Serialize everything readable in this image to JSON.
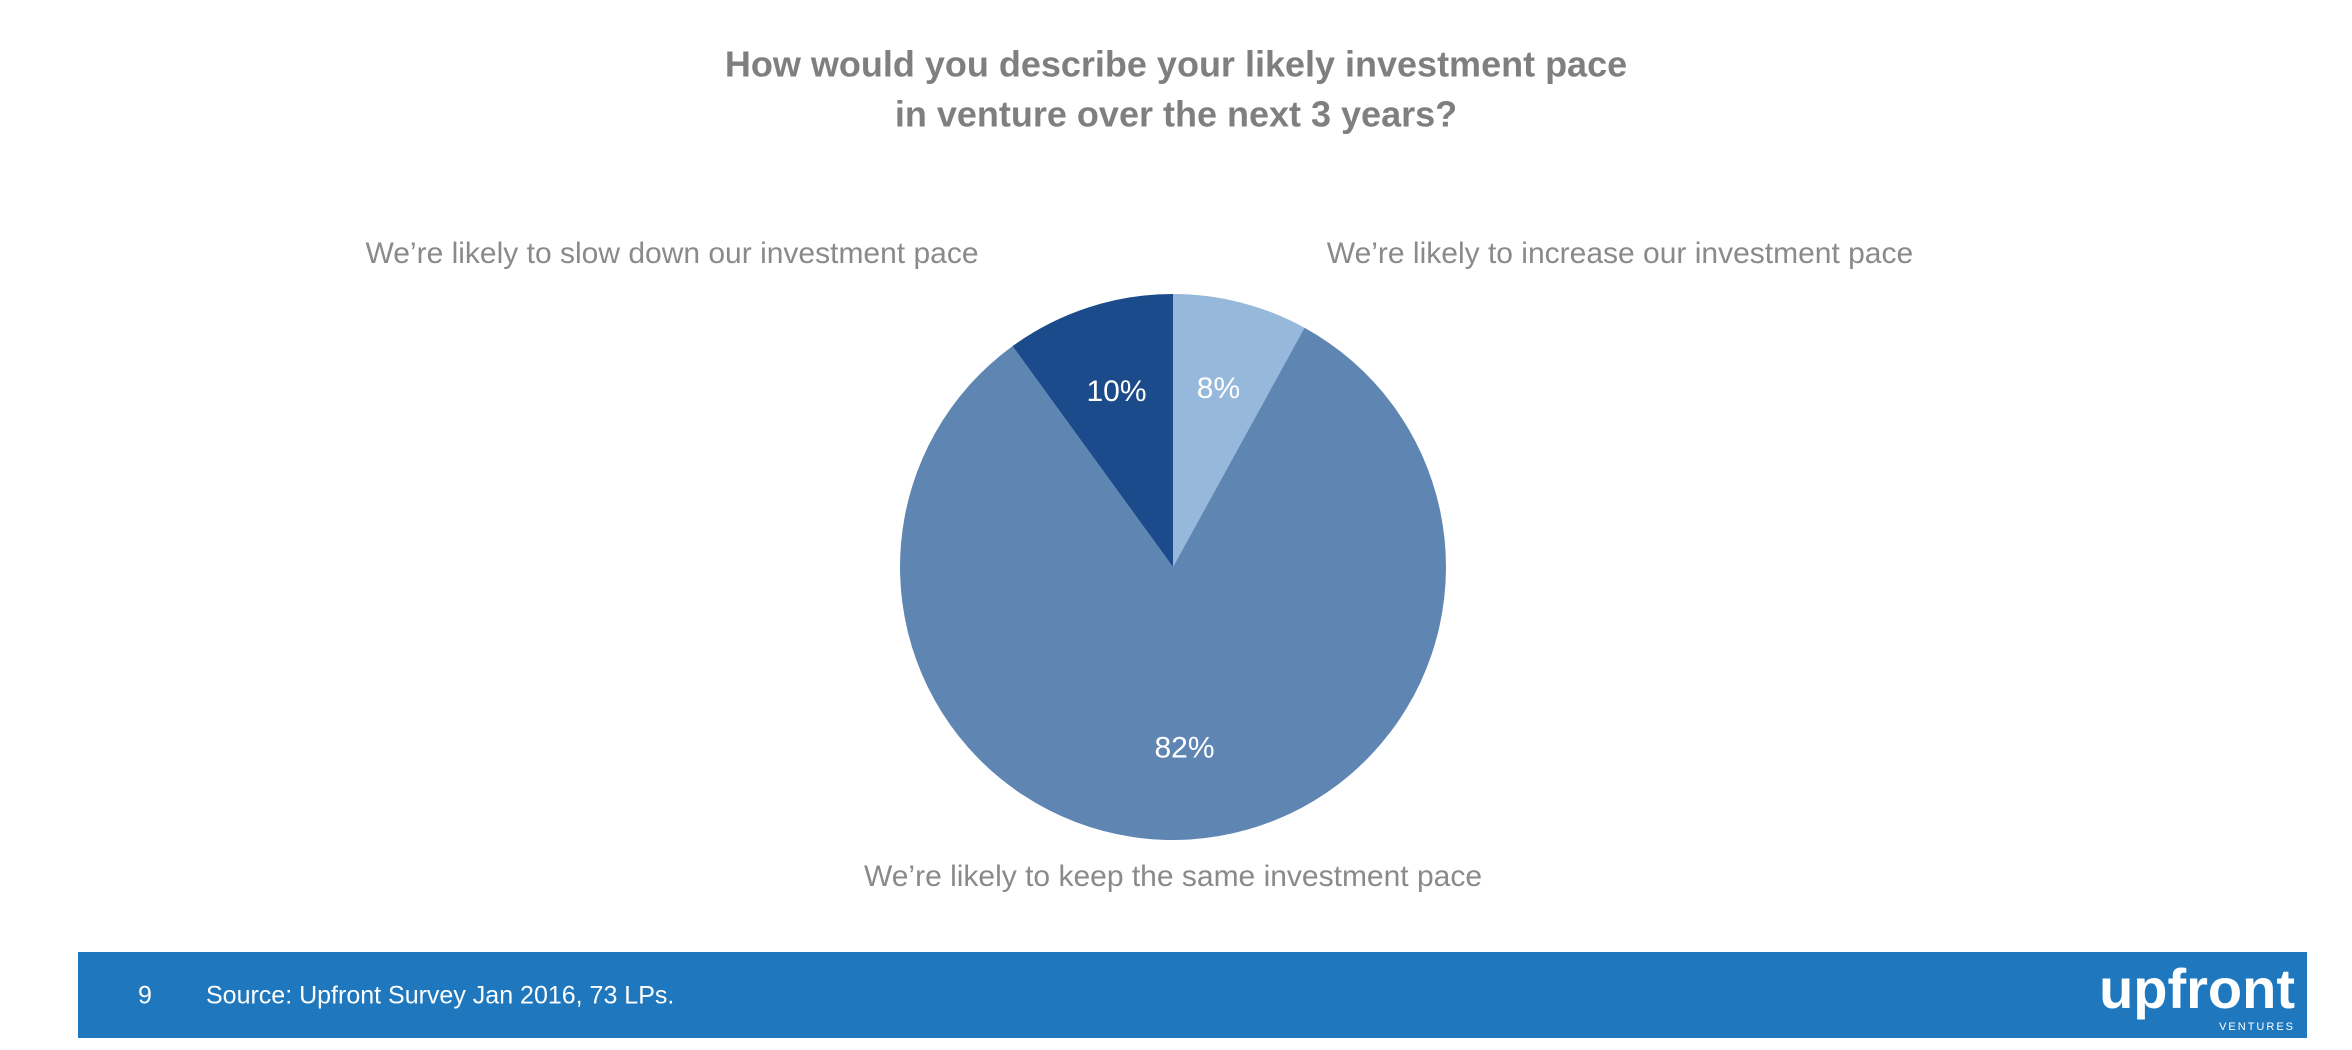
{
  "chart_data": {
    "type": "pie",
    "title": [
      "How would you describe your likely investment pace",
      "in venture over the next 3 years?"
    ],
    "categories": [
      "We’re likely to increase our investment pace",
      "We’re likely to keep the same investment pace",
      "We’re likely to slow down our investment pace"
    ],
    "values": [
      8,
      82,
      10
    ],
    "value_labels": [
      "8%",
      "82%",
      "10%"
    ],
    "colors": [
      "#95b8db",
      "#5f86b3",
      "#1b4b8a"
    ]
  },
  "footer": {
    "page_number": "9",
    "source": "Source: Upfront Survey Jan 2016, 73 LPs.",
    "logo": "upfront",
    "logo_subtitle": "VENTURES"
  }
}
